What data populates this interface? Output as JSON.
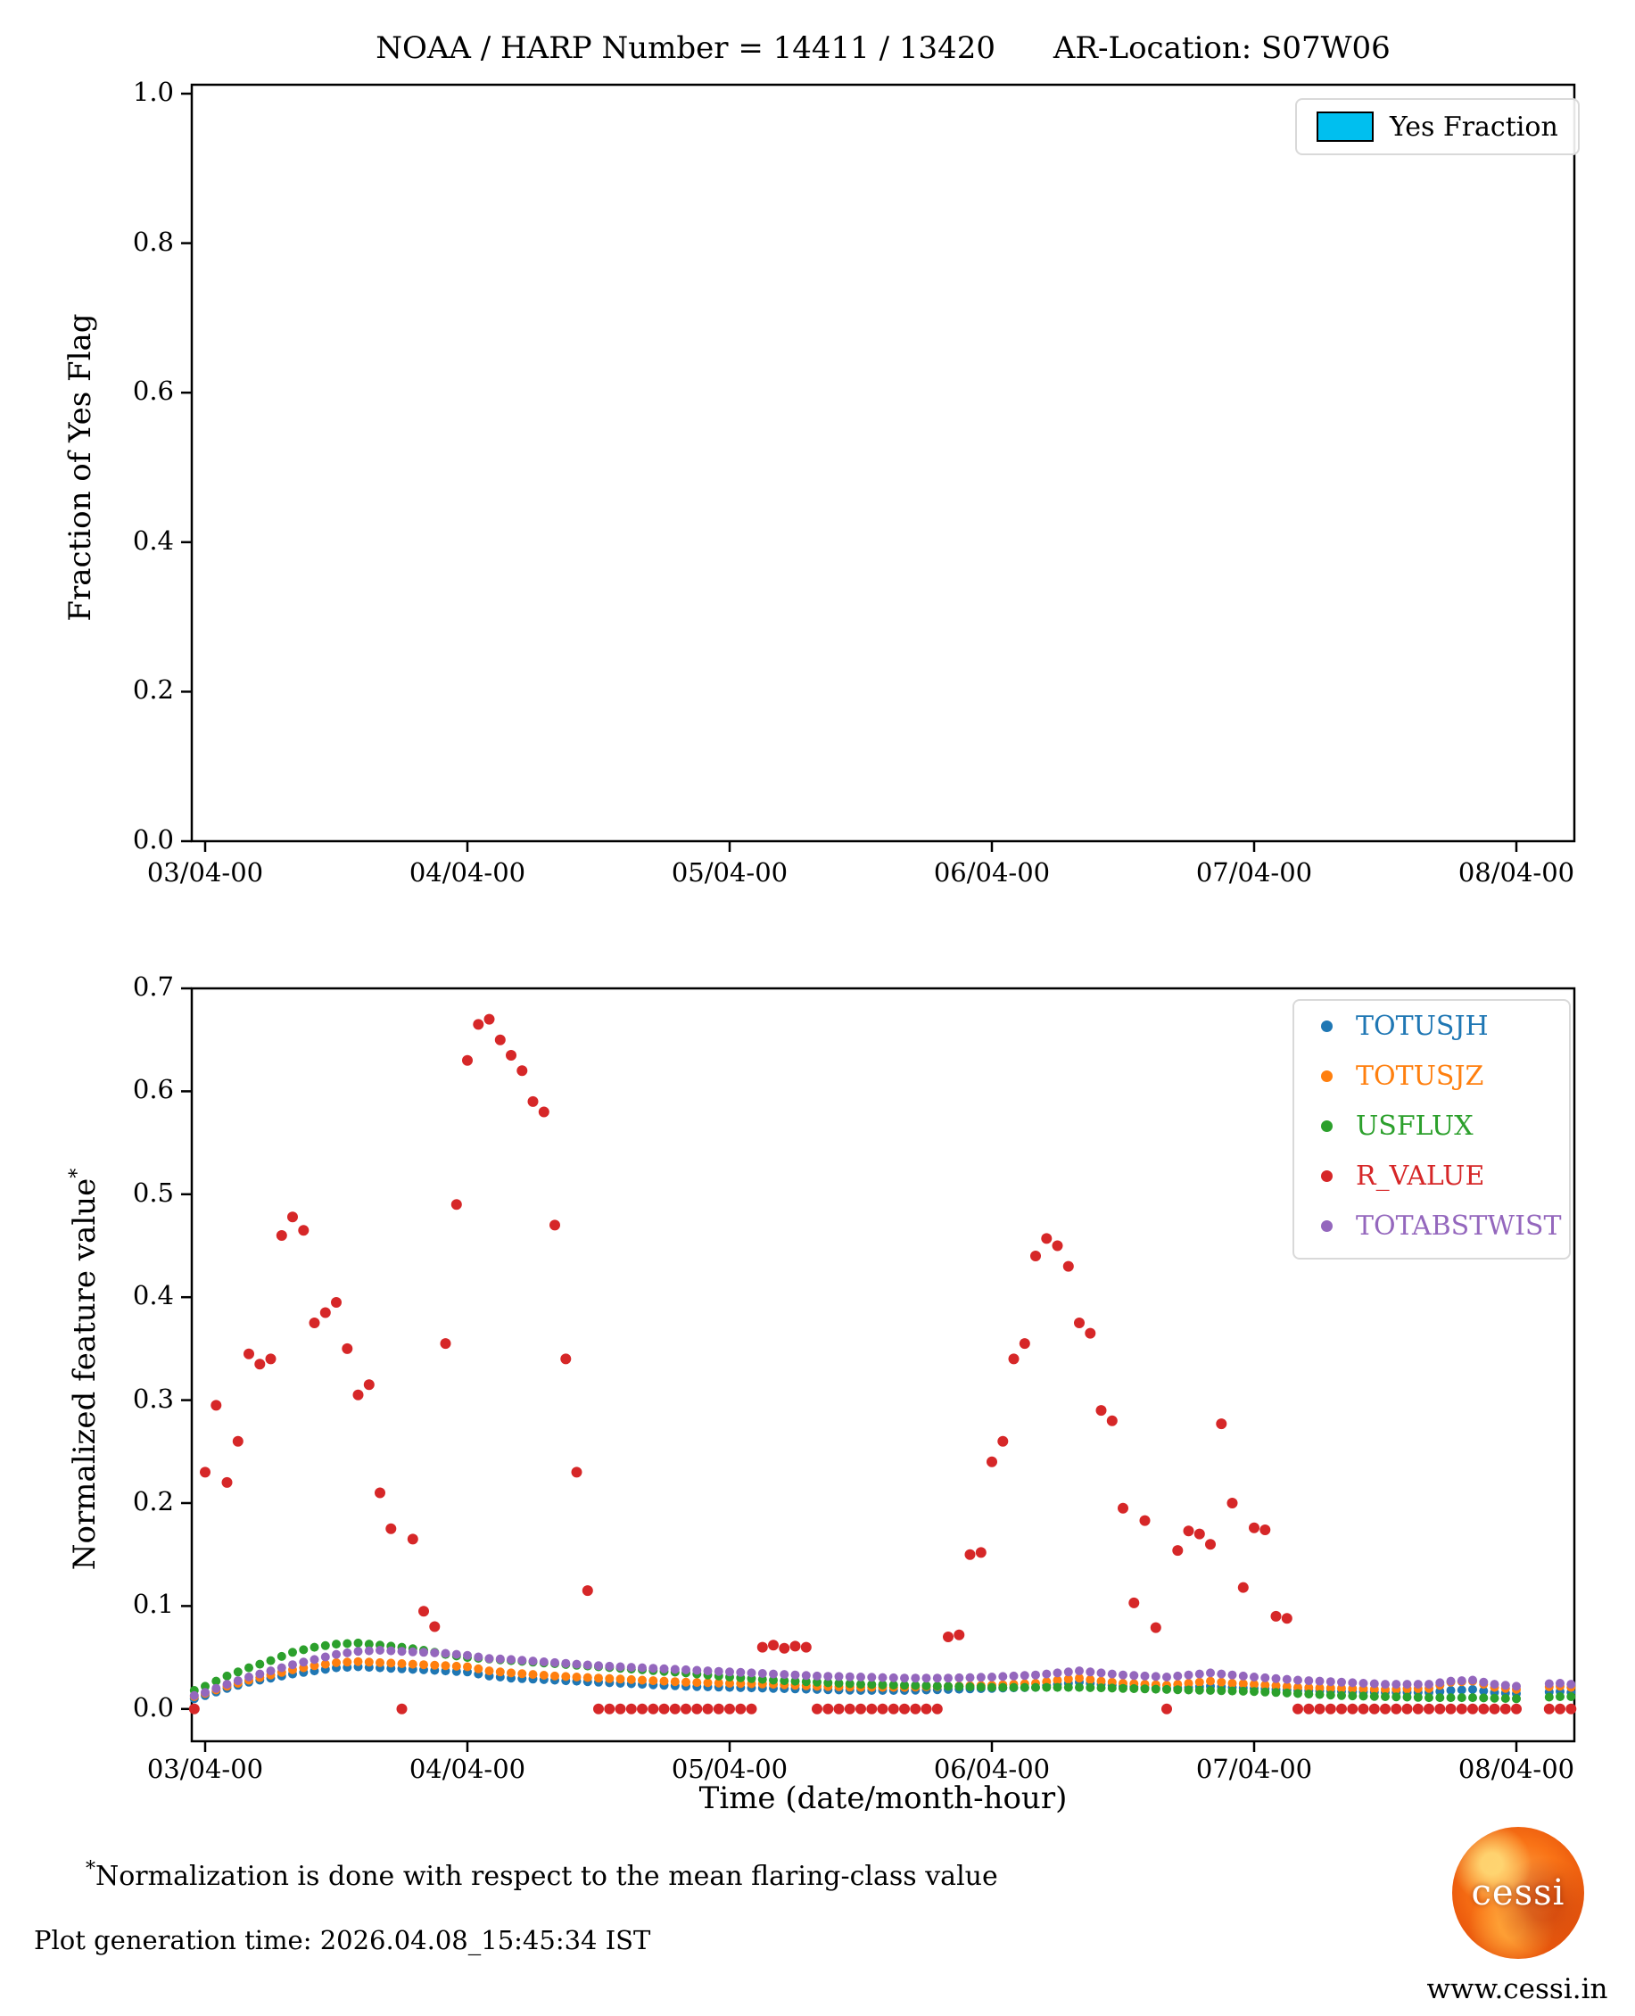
{
  "title": "NOAA / HARP Number = 14411 / 13420      AR-Location: S07W06",
  "top_chart": {
    "ylabel": "Fraction of Yes Flag",
    "legend_label": "Yes Fraction",
    "legend_color": "#00bfef",
    "y_tick_labels": [
      "1.0",
      "0.8",
      "0.6",
      "0.4",
      "0.2",
      "0.0"
    ],
    "x_tick_labels": [
      "03/04-00",
      "04/04-00",
      "05/04-00",
      "06/04-00",
      "07/04-00",
      "08/04-00"
    ]
  },
  "bottom_chart": {
    "ylabel_text": "Normalized feature value",
    "ylabel_marker": "*",
    "xlabel": "Time (date/month-hour)",
    "y_tick_labels": [
      "0.7",
      "0.6",
      "0.5",
      "0.4",
      "0.3",
      "0.2",
      "0.1",
      "0.0"
    ],
    "x_tick_labels": [
      "03/04-00",
      "04/04-00",
      "05/04-00",
      "06/04-00",
      "07/04-00",
      "08/04-00"
    ],
    "legend": [
      {
        "label": "TOTUSJH",
        "color": "#1f77b4"
      },
      {
        "label": "TOTUSJZ",
        "color": "#ff7f0e"
      },
      {
        "label": "USFLUX",
        "color": "#2ca02c"
      },
      {
        "label": "R_VALUE",
        "color": "#d62728"
      },
      {
        "label": "TOTABSTWIST",
        "color": "#9467bd"
      }
    ]
  },
  "footnote": {
    "marker": "*",
    "text": "Normalization is done with respect to the mean flaring-class value"
  },
  "footer": {
    "generation_time": "Plot generation time: 2026.04.08_15:45:34 IST"
  },
  "logo": {
    "text": "cessi",
    "url": "www.cessi.in"
  },
  "chart_data": [
    {
      "type": "bar",
      "title": "NOAA / HARP Number = 14411 / 13420   AR-Location: S07W06",
      "ylabel": "Fraction of Yes Flag",
      "xlabel": "",
      "ylim": [
        0.0,
        1.0
      ],
      "x_tick_labels": [
        "03/04-00",
        "04/04-00",
        "05/04-00",
        "06/04-00",
        "07/04-00",
        "08/04-00"
      ],
      "legend": [
        {
          "name": "Yes Fraction",
          "color": "#00bfef"
        }
      ],
      "legend_position": "upper right",
      "grid": false,
      "series": [
        {
          "name": "Yes Fraction",
          "values": []
        }
      ],
      "note_visible_data": "no bars visible; yes-fraction is zero across the full time range"
    },
    {
      "type": "scatter",
      "xlabel": "Time (date/month-hour)",
      "ylabel": "Normalized feature value*",
      "ylim": [
        -0.032,
        0.7
      ],
      "x_axis": "hours since 03/04-00",
      "x_tick_hours": [
        0,
        24,
        48,
        72,
        96,
        120
      ],
      "x_tick_labels": [
        "03/04-00",
        "04/04-00",
        "05/04-00",
        "06/04-00",
        "07/04-00",
        "08/04-00"
      ],
      "xlim_hours": [
        -1.2,
        125.5
      ],
      "cadence_hours": 1,
      "gap_hours": [
        121,
        122
      ],
      "legend_position": "upper right",
      "grid": false,
      "series": [
        {
          "name": "TOTUSJH",
          "color": "#1f77b4",
          "marker_radius": 5,
          "x_start_hour": -1,
          "anchors": [
            [
              -1,
              0.01
            ],
            [
              0,
              0.013
            ],
            [
              2,
              0.02
            ],
            [
              4,
              0.026
            ],
            [
              6,
              0.03
            ],
            [
              8,
              0.034
            ],
            [
              10,
              0.037
            ],
            [
              12,
              0.04
            ],
            [
              14,
              0.041
            ],
            [
              16,
              0.04
            ],
            [
              18,
              0.039
            ],
            [
              20,
              0.038
            ],
            [
              22,
              0.037
            ],
            [
              24,
              0.036
            ],
            [
              26,
              0.032
            ],
            [
              28,
              0.03
            ],
            [
              32,
              0.028
            ],
            [
              36,
              0.026
            ],
            [
              40,
              0.024
            ],
            [
              44,
              0.022
            ],
            [
              48,
              0.021
            ],
            [
              52,
              0.02
            ],
            [
              56,
              0.019
            ],
            [
              60,
              0.018
            ],
            [
              64,
              0.018
            ],
            [
              68,
              0.019
            ],
            [
              72,
              0.02
            ],
            [
              76,
              0.021
            ],
            [
              78,
              0.024
            ],
            [
              80,
              0.026
            ],
            [
              82,
              0.024
            ],
            [
              84,
              0.022
            ],
            [
              86,
              0.021
            ],
            [
              88,
              0.02
            ],
            [
              90,
              0.021
            ],
            [
              92,
              0.022
            ],
            [
              94,
              0.021
            ],
            [
              96,
              0.02
            ],
            [
              100,
              0.018
            ],
            [
              104,
              0.017
            ],
            [
              108,
              0.016
            ],
            [
              112,
              0.016
            ],
            [
              114,
              0.018
            ],
            [
              116,
              0.019
            ],
            [
              118,
              0.016
            ],
            [
              120,
              0.015
            ],
            [
              122,
              0.016
            ],
            [
              124,
              0.017
            ],
            [
              125,
              0.016
            ]
          ]
        },
        {
          "name": "TOTUSJZ",
          "color": "#ff7f0e",
          "marker_radius": 5,
          "x_start_hour": -1,
          "anchors": [
            [
              -1,
              0.012
            ],
            [
              0,
              0.015
            ],
            [
              2,
              0.022
            ],
            [
              4,
              0.028
            ],
            [
              6,
              0.033
            ],
            [
              8,
              0.038
            ],
            [
              10,
              0.042
            ],
            [
              12,
              0.045
            ],
            [
              14,
              0.046
            ],
            [
              16,
              0.045
            ],
            [
              18,
              0.044
            ],
            [
              20,
              0.043
            ],
            [
              22,
              0.042
            ],
            [
              24,
              0.041
            ],
            [
              26,
              0.037
            ],
            [
              28,
              0.035
            ],
            [
              32,
              0.032
            ],
            [
              36,
              0.03
            ],
            [
              40,
              0.028
            ],
            [
              44,
              0.026
            ],
            [
              48,
              0.025
            ],
            [
              52,
              0.024
            ],
            [
              56,
              0.022
            ],
            [
              60,
              0.021
            ],
            [
              64,
              0.021
            ],
            [
              68,
              0.022
            ],
            [
              72,
              0.023
            ],
            [
              76,
              0.025
            ],
            [
              78,
              0.028
            ],
            [
              80,
              0.03
            ],
            [
              82,
              0.027
            ],
            [
              84,
              0.025
            ],
            [
              86,
              0.024
            ],
            [
              88,
              0.023
            ],
            [
              90,
              0.025
            ],
            [
              92,
              0.027
            ],
            [
              94,
              0.025
            ],
            [
              96,
              0.024
            ],
            [
              100,
              0.021
            ],
            [
              104,
              0.02
            ],
            [
              108,
              0.019
            ],
            [
              112,
              0.02
            ],
            [
              114,
              0.026
            ],
            [
              116,
              0.027
            ],
            [
              118,
              0.021
            ],
            [
              120,
              0.019
            ],
            [
              122,
              0.021
            ],
            [
              124,
              0.022
            ],
            [
              125,
              0.021
            ]
          ]
        },
        {
          "name": "USFLUX",
          "color": "#2ca02c",
          "marker_radius": 5,
          "x_start_hour": -1,
          "anchors": [
            [
              -1,
              0.018
            ],
            [
              0,
              0.022
            ],
            [
              2,
              0.032
            ],
            [
              4,
              0.04
            ],
            [
              6,
              0.047
            ],
            [
              8,
              0.055
            ],
            [
              10,
              0.06
            ],
            [
              12,
              0.063
            ],
            [
              14,
              0.064
            ],
            [
              16,
              0.062
            ],
            [
              18,
              0.06
            ],
            [
              20,
              0.057
            ],
            [
              22,
              0.053
            ],
            [
              24,
              0.05
            ],
            [
              28,
              0.047
            ],
            [
              32,
              0.044
            ],
            [
              36,
              0.041
            ],
            [
              40,
              0.038
            ],
            [
              44,
              0.035
            ],
            [
              48,
              0.031
            ],
            [
              52,
              0.028
            ],
            [
              56,
              0.026
            ],
            [
              60,
              0.024
            ],
            [
              64,
              0.023
            ],
            [
              68,
              0.022
            ],
            [
              72,
              0.021
            ],
            [
              76,
              0.021
            ],
            [
              80,
              0.021
            ],
            [
              84,
              0.02
            ],
            [
              88,
              0.019
            ],
            [
              92,
              0.018
            ],
            [
              96,
              0.017
            ],
            [
              100,
              0.015
            ],
            [
              104,
              0.013
            ],
            [
              108,
              0.012
            ],
            [
              112,
              0.011
            ],
            [
              116,
              0.011
            ],
            [
              120,
              0.01
            ],
            [
              124,
              0.012
            ],
            [
              125,
              0.012
            ]
          ]
        },
        {
          "name": "R_VALUE",
          "color": "#d62728",
          "marker_radius": 6,
          "x_start_hour": -1,
          "values": [
            0.0,
            0.23,
            0.295,
            0.22,
            0.26,
            0.345,
            0.335,
            0.34,
            0.46,
            0.478,
            0.465,
            0.375,
            0.385,
            0.395,
            0.35,
            0.305,
            0.315,
            0.21,
            0.175,
            0.0,
            0.165,
            0.095,
            0.08,
            0.355,
            0.49,
            0.63,
            0.665,
            0.67,
            0.65,
            0.635,
            0.62,
            0.59,
            0.58,
            0.47,
            0.34,
            0.23,
            0.115,
            0,
            0,
            0,
            0,
            0,
            0,
            0,
            0,
            0,
            0,
            0,
            0,
            0,
            0,
            0,
            0.06,
            0.062,
            0.059,
            0.061,
            0.06,
            0,
            0,
            0,
            0,
            0,
            0,
            0,
            0,
            0,
            0,
            0,
            0,
            0.07,
            0.072,
            0.15,
            0.152,
            0.24,
            0.26,
            0.34,
            0.355,
            0.44,
            0.457,
            0.45,
            0.43,
            0.375,
            0.365,
            0.29,
            0.28,
            0.195,
            0.103,
            0.183,
            0.079,
            0.0,
            0.154,
            0.173,
            0.17,
            0.16,
            0.277,
            0.2,
            0.118,
            0.176,
            0.174,
            0.09,
            0.088,
            0,
            0,
            0,
            0,
            0,
            0,
            0,
            0,
            0,
            0,
            0,
            0,
            0,
            0,
            0,
            0,
            0,
            0,
            0,
            0,
            0,
            0,
            0,
            0,
            0,
            0
          ]
        },
        {
          "name": "TOTABSTWIST",
          "color": "#9467bd",
          "marker_radius": 5,
          "x_start_hour": -1,
          "anchors": [
            [
              -1,
              0.013
            ],
            [
              0,
              0.016
            ],
            [
              2,
              0.024
            ],
            [
              4,
              0.031
            ],
            [
              6,
              0.037
            ],
            [
              8,
              0.043
            ],
            [
              10,
              0.048
            ],
            [
              12,
              0.053
            ],
            [
              14,
              0.056
            ],
            [
              16,
              0.057
            ],
            [
              18,
              0.056
            ],
            [
              20,
              0.055
            ],
            [
              22,
              0.054
            ],
            [
              24,
              0.052
            ],
            [
              26,
              0.049
            ],
            [
              28,
              0.048
            ],
            [
              32,
              0.045
            ],
            [
              36,
              0.042
            ],
            [
              40,
              0.04
            ],
            [
              44,
              0.038
            ],
            [
              48,
              0.036
            ],
            [
              52,
              0.034
            ],
            [
              56,
              0.032
            ],
            [
              60,
              0.031
            ],
            [
              64,
              0.03
            ],
            [
              68,
              0.03
            ],
            [
              72,
              0.031
            ],
            [
              76,
              0.033
            ],
            [
              78,
              0.035
            ],
            [
              80,
              0.037
            ],
            [
              82,
              0.035
            ],
            [
              84,
              0.033
            ],
            [
              86,
              0.032
            ],
            [
              88,
              0.031
            ],
            [
              90,
              0.033
            ],
            [
              92,
              0.035
            ],
            [
              94,
              0.033
            ],
            [
              96,
              0.031
            ],
            [
              100,
              0.028
            ],
            [
              104,
              0.026
            ],
            [
              108,
              0.024
            ],
            [
              112,
              0.024
            ],
            [
              114,
              0.027
            ],
            [
              116,
              0.028
            ],
            [
              118,
              0.024
            ],
            [
              120,
              0.022
            ],
            [
              122,
              0.024
            ],
            [
              124,
              0.025
            ],
            [
              125,
              0.024
            ]
          ]
        }
      ]
    }
  ]
}
